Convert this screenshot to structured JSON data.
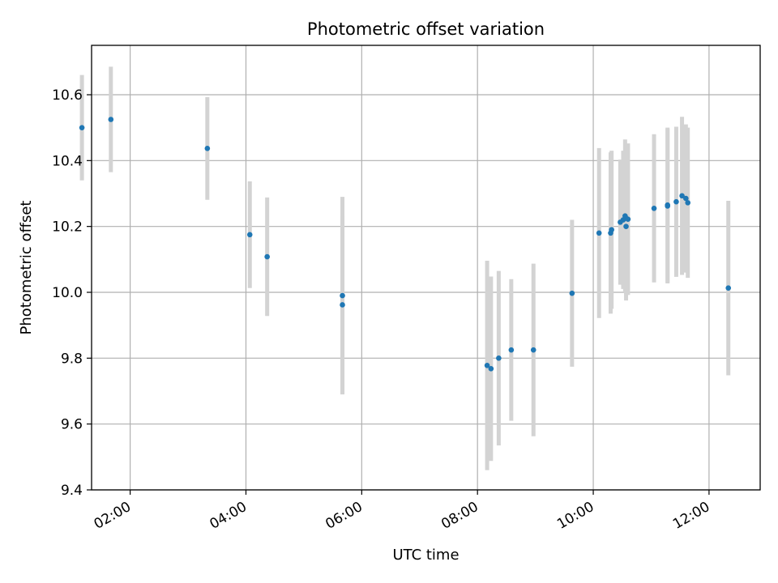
{
  "chart_data": {
    "type": "scatter",
    "title": "Photometric offset variation",
    "xlabel": "UTC time",
    "ylabel": "Photometric offset",
    "x_axis": {
      "type": "time",
      "range": [
        "01:20",
        "12:53"
      ],
      "ticks": [
        "02:00",
        "04:00",
        "06:00",
        "08:00",
        "10:00",
        "12:00"
      ]
    },
    "y_axis": {
      "range": [
        9.4,
        10.75
      ],
      "ticks": [
        9.4,
        9.6,
        9.8,
        10.0,
        10.2,
        10.4,
        10.6
      ],
      "tick_labels": [
        "9.4",
        "9.6",
        "9.8",
        "10.0",
        "10.2",
        "10.4",
        "10.6"
      ]
    },
    "grid": true,
    "legend": "none",
    "colors": {
      "marker": "#1f77b4",
      "errorbar": "#d3d3d3",
      "grid": "#b0b0b0"
    },
    "series": [
      {
        "marker": "point",
        "points": [
          {
            "x": "01:10",
            "y": 10.5,
            "err": 0.16
          },
          {
            "x": "01:40",
            "y": 10.525,
            "err": 0.16
          },
          {
            "x": "03:20",
            "y": 10.437,
            "err": 0.156
          },
          {
            "x": "04:04",
            "y": 10.175,
            "err": 0.162
          },
          {
            "x": "04:22",
            "y": 10.108,
            "err": 0.18
          },
          {
            "x": "05:40",
            "y": 9.99,
            "err": 0.3
          },
          {
            "x": "05:40",
            "y": 9.962,
            "err": 0.27
          },
          {
            "x": "08:10",
            "y": 9.778,
            "err": 0.318
          },
          {
            "x": "08:14",
            "y": 9.768,
            "err": 0.28
          },
          {
            "x": "08:22",
            "y": 9.8,
            "err": 0.265
          },
          {
            "x": "08:35",
            "y": 9.825,
            "err": 0.215
          },
          {
            "x": "08:58",
            "y": 9.825,
            "err": 0.262
          },
          {
            "x": "09:38",
            "y": 9.997,
            "err": 0.223
          },
          {
            "x": "10:06",
            "y": 10.18,
            "err": 0.258
          },
          {
            "x": "10:18",
            "y": 10.18,
            "err": 0.245
          },
          {
            "x": "10:19",
            "y": 10.19,
            "err": 0.24
          },
          {
            "x": "10:28",
            "y": 10.213,
            "err": 0.19
          },
          {
            "x": "10:31",
            "y": 10.22,
            "err": 0.21
          },
          {
            "x": "10:33",
            "y": 10.232,
            "err": 0.232
          },
          {
            "x": "10:34",
            "y": 10.225,
            "err": 0.21
          },
          {
            "x": "10:34",
            "y": 10.2,
            "err": 0.225
          },
          {
            "x": "10:36",
            "y": 10.222,
            "err": 0.23
          },
          {
            "x": "11:03",
            "y": 10.255,
            "err": 0.225
          },
          {
            "x": "11:17",
            "y": 10.265,
            "err": 0.235
          },
          {
            "x": "11:17",
            "y": 10.262,
            "err": 0.235
          },
          {
            "x": "11:26",
            "y": 10.275,
            "err": 0.228
          },
          {
            "x": "11:32",
            "y": 10.293,
            "err": 0.24
          },
          {
            "x": "11:36",
            "y": 10.285,
            "err": 0.225
          },
          {
            "x": "11:38",
            "y": 10.272,
            "err": 0.228
          },
          {
            "x": "12:20",
            "y": 10.013,
            "err": 0.265
          }
        ]
      }
    ]
  }
}
